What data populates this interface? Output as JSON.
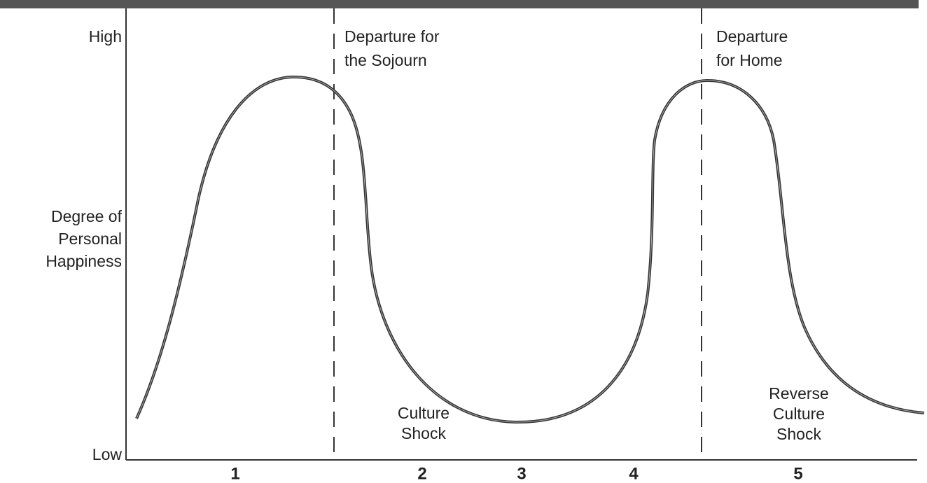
{
  "y_axis": {
    "high": "High",
    "low": "Low",
    "label": [
      "Degree of",
      "Personal",
      "Happiness"
    ]
  },
  "annotations": {
    "departure_sojourn": [
      "Departure for",
      "the Sojourn"
    ],
    "departure_home": [
      "Departure",
      "for Home"
    ],
    "culture_shock": [
      "Culture",
      "Shock"
    ],
    "reverse_culture_shock": [
      "Reverse",
      "Culture",
      "Shock"
    ]
  },
  "stages": [
    "1",
    "2",
    "3",
    "4",
    "5"
  ]
}
